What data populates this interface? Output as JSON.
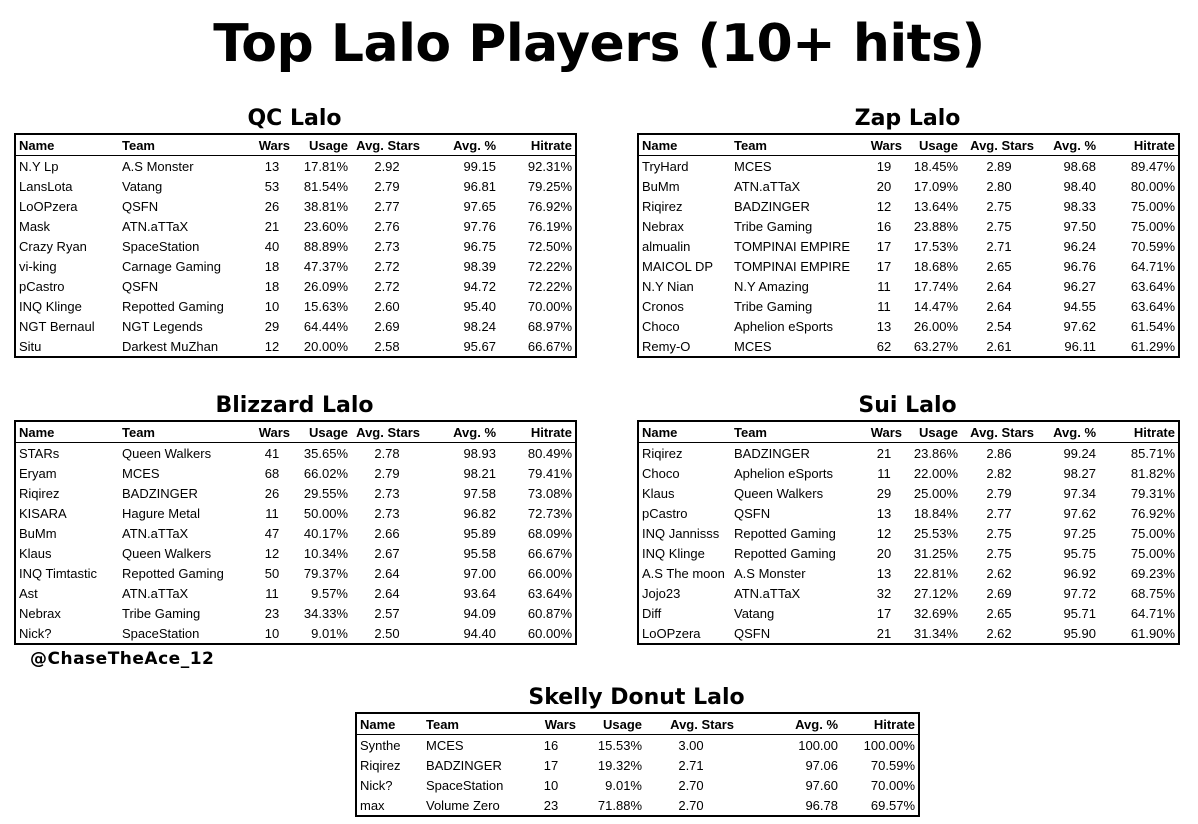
{
  "title": "Top Lalo Players (10+ hits)",
  "credit": "@ChaseTheAce_12",
  "columns": [
    "Name",
    "Team",
    "Wars",
    "Usage",
    "Avg. Stars",
    "Avg. %",
    "Hitrate"
  ],
  "sections": [
    {
      "title": "QC Lalo",
      "rows": [
        [
          "N.Y Lp",
          "A.S Monster",
          "13",
          "17.81%",
          "2.92",
          "99.15",
          "92.31%"
        ],
        [
          "LansLota",
          "Vatang",
          "53",
          "81.54%",
          "2.79",
          "96.81",
          "79.25%"
        ],
        [
          "LoOPzera",
          "QSFN",
          "26",
          "38.81%",
          "2.77",
          "97.65",
          "76.92%"
        ],
        [
          "Mask",
          "ATN.aTTaX",
          "21",
          "23.60%",
          "2.76",
          "97.76",
          "76.19%"
        ],
        [
          "Crazy Ryan",
          "SpaceStation",
          "40",
          "88.89%",
          "2.73",
          "96.75",
          "72.50%"
        ],
        [
          "vi-king",
          "Carnage Gaming",
          "18",
          "47.37%",
          "2.72",
          "98.39",
          "72.22%"
        ],
        [
          "pCastro",
          "QSFN",
          "18",
          "26.09%",
          "2.72",
          "94.72",
          "72.22%"
        ],
        [
          "INQ Klinge",
          "Repotted Gaming",
          "10",
          "15.63%",
          "2.60",
          "95.40",
          "70.00%"
        ],
        [
          "NGT Bernaul",
          "NGT Legends",
          "29",
          "64.44%",
          "2.69",
          "98.24",
          "68.97%"
        ],
        [
          "Situ",
          "Darkest MuZhan",
          "12",
          "20.00%",
          "2.58",
          "95.67",
          "66.67%"
        ]
      ]
    },
    {
      "title": "Zap Lalo",
      "rows": [
        [
          "TryHard",
          "MCES",
          "19",
          "18.45%",
          "2.89",
          "98.68",
          "89.47%"
        ],
        [
          "BuMm",
          "ATN.aTTaX",
          "20",
          "17.09%",
          "2.80",
          "98.40",
          "80.00%"
        ],
        [
          "Riqirez",
          "BADZINGER",
          "12",
          "13.64%",
          "2.75",
          "98.33",
          "75.00%"
        ],
        [
          "Nebrax",
          "Tribe Gaming",
          "16",
          "23.88%",
          "2.75",
          "97.50",
          "75.00%"
        ],
        [
          "almualin",
          "TOMPINAI EMPIRE",
          "17",
          "17.53%",
          "2.71",
          "96.24",
          "70.59%"
        ],
        [
          "MAICOL DP",
          "TOMPINAI EMPIRE",
          "17",
          "18.68%",
          "2.65",
          "96.76",
          "64.71%"
        ],
        [
          "N.Y Nian",
          "N.Y Amazing",
          "11",
          "17.74%",
          "2.64",
          "96.27",
          "63.64%"
        ],
        [
          "Cronos",
          "Tribe Gaming",
          "11",
          "14.47%",
          "2.64",
          "94.55",
          "63.64%"
        ],
        [
          "Choco",
          "Aphelion eSports",
          "13",
          "26.00%",
          "2.54",
          "97.62",
          "61.54%"
        ],
        [
          "Remy-O",
          "MCES",
          "62",
          "63.27%",
          "2.61",
          "96.11",
          "61.29%"
        ]
      ]
    },
    {
      "title": "Blizzard Lalo",
      "rows": [
        [
          "STARs",
          "Queen Walkers",
          "41",
          "35.65%",
          "2.78",
          "98.93",
          "80.49%"
        ],
        [
          "Eryam",
          "MCES",
          "68",
          "66.02%",
          "2.79",
          "98.21",
          "79.41%"
        ],
        [
          "Riqirez",
          "BADZINGER",
          "26",
          "29.55%",
          "2.73",
          "97.58",
          "73.08%"
        ],
        [
          "KISARA",
          "Hagure Metal",
          "11",
          "50.00%",
          "2.73",
          "96.82",
          "72.73%"
        ],
        [
          "BuMm",
          "ATN.aTTaX",
          "47",
          "40.17%",
          "2.66",
          "95.89",
          "68.09%"
        ],
        [
          "Klaus",
          "Queen Walkers",
          "12",
          "10.34%",
          "2.67",
          "95.58",
          "66.67%"
        ],
        [
          "INQ Timtastic",
          "Repotted Gaming",
          "50",
          "79.37%",
          "2.64",
          "97.00",
          "66.00%"
        ],
        [
          "Ast",
          "ATN.aTTaX",
          "11",
          "9.57%",
          "2.64",
          "93.64",
          "63.64%"
        ],
        [
          "Nebrax",
          "Tribe Gaming",
          "23",
          "34.33%",
          "2.57",
          "94.09",
          "60.87%"
        ],
        [
          "Nick?",
          "SpaceStation",
          "10",
          "9.01%",
          "2.50",
          "94.40",
          "60.00%"
        ]
      ]
    },
    {
      "title": "Sui Lalo",
      "rows": [
        [
          "Riqirez",
          "BADZINGER",
          "21",
          "23.86%",
          "2.86",
          "99.24",
          "85.71%"
        ],
        [
          "Choco",
          "Aphelion eSports",
          "11",
          "22.00%",
          "2.82",
          "98.27",
          "81.82%"
        ],
        [
          "Klaus",
          "Queen Walkers",
          "29",
          "25.00%",
          "2.79",
          "97.34",
          "79.31%"
        ],
        [
          "pCastro",
          "QSFN",
          "13",
          "18.84%",
          "2.77",
          "97.62",
          "76.92%"
        ],
        [
          "INQ Jannisss",
          "Repotted Gaming",
          "12",
          "25.53%",
          "2.75",
          "97.25",
          "75.00%"
        ],
        [
          "INQ Klinge",
          "Repotted Gaming",
          "20",
          "31.25%",
          "2.75",
          "95.75",
          "75.00%"
        ],
        [
          "A.S The moon",
          "A.S Monster",
          "13",
          "22.81%",
          "2.62",
          "96.92",
          "69.23%"
        ],
        [
          "Jojo23",
          "ATN.aTTaX",
          "32",
          "27.12%",
          "2.69",
          "97.72",
          "68.75%"
        ],
        [
          "Diff",
          "Vatang",
          "17",
          "32.69%",
          "2.65",
          "95.71",
          "64.71%"
        ],
        [
          "LoOPzera",
          "QSFN",
          "21",
          "31.34%",
          "2.62",
          "95.90",
          "61.90%"
        ]
      ]
    },
    {
      "title": "Skelly Donut Lalo",
      "rows": [
        [
          "Synthe",
          "MCES",
          "16",
          "15.53%",
          "3.00",
          "100.00",
          "100.00%"
        ],
        [
          "Riqirez",
          "BADZINGER",
          "17",
          "19.32%",
          "2.71",
          "97.06",
          "70.59%"
        ],
        [
          "Nick?",
          "SpaceStation",
          "10",
          "9.01%",
          "2.70",
          "97.60",
          "70.00%"
        ],
        [
          "max",
          "Volume Zero",
          "23",
          "71.88%",
          "2.70",
          "96.78",
          "69.57%"
        ]
      ]
    }
  ]
}
